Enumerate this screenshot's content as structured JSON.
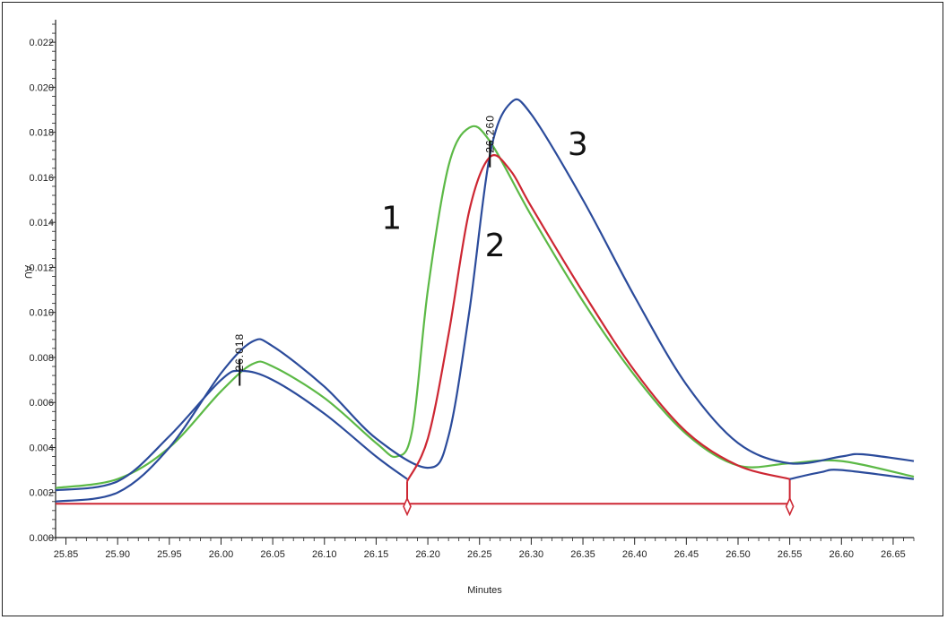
{
  "chart_data": {
    "type": "line",
    "xlabel": "Minutes",
    "ylabel": "AU",
    "xlim": [
      25.84,
      26.67
    ],
    "ylim": [
      0.0,
      0.023
    ],
    "x_ticks": [
      "25.85",
      "25.90",
      "25.95",
      "26.00",
      "26.05",
      "26.10",
      "26.15",
      "26.20",
      "26.25",
      "26.30",
      "26.35",
      "26.40",
      "26.45",
      "26.50",
      "26.55",
      "26.60",
      "26.65"
    ],
    "y_ticks": [
      "0.000",
      "0.002",
      "0.004",
      "0.006",
      "0.008",
      "0.010",
      "0.012",
      "0.014",
      "0.016",
      "0.018",
      "0.020",
      "0.022"
    ],
    "grid": false,
    "series": [
      {
        "label": "1",
        "color": "#5cb946",
        "points": [
          [
            25.84,
            0.0022
          ],
          [
            25.9,
            0.0026
          ],
          [
            25.95,
            0.004
          ],
          [
            26.0,
            0.0065
          ],
          [
            26.03,
            0.0077
          ],
          [
            26.05,
            0.0076
          ],
          [
            26.1,
            0.0062
          ],
          [
            26.15,
            0.0042
          ],
          [
            26.17,
            0.0036
          ],
          [
            26.185,
            0.0048
          ],
          [
            26.2,
            0.011
          ],
          [
            26.22,
            0.0165
          ],
          [
            26.24,
            0.0182
          ],
          [
            26.26,
            0.0176
          ],
          [
            26.3,
            0.0143
          ],
          [
            26.35,
            0.0105
          ],
          [
            26.4,
            0.0072
          ],
          [
            26.45,
            0.0046
          ],
          [
            26.5,
            0.0032
          ],
          [
            26.55,
            0.0033
          ],
          [
            26.6,
            0.0034
          ],
          [
            26.67,
            0.0027
          ]
        ]
      },
      {
        "label": "2",
        "color": "#cd2733",
        "points": [
          [
            26.18,
            0.0025
          ],
          [
            26.2,
            0.0044
          ],
          [
            26.22,
            0.009
          ],
          [
            26.24,
            0.0145
          ],
          [
            26.26,
            0.0169
          ],
          [
            26.28,
            0.0163
          ],
          [
            26.3,
            0.0147
          ],
          [
            26.35,
            0.0109
          ],
          [
            26.4,
            0.0074
          ],
          [
            26.45,
            0.0047
          ],
          [
            26.5,
            0.0032
          ],
          [
            26.55,
            0.0026
          ]
        ]
      },
      {
        "label": "3",
        "color": "#2b4b9b",
        "points": [
          [
            25.84,
            0.0016
          ],
          [
            25.9,
            0.002
          ],
          [
            25.95,
            0.004
          ],
          [
            26.0,
            0.0073
          ],
          [
            26.03,
            0.0087
          ],
          [
            26.05,
            0.0085
          ],
          [
            26.1,
            0.0067
          ],
          [
            26.15,
            0.0044
          ],
          [
            26.2,
            0.0031
          ],
          [
            26.22,
            0.0045
          ],
          [
            26.24,
            0.01
          ],
          [
            26.26,
            0.017
          ],
          [
            26.28,
            0.0193
          ],
          [
            26.3,
            0.0188
          ],
          [
            26.35,
            0.015
          ],
          [
            26.4,
            0.0107
          ],
          [
            26.45,
            0.0068
          ],
          [
            26.5,
            0.0042
          ],
          [
            26.55,
            0.0033
          ],
          [
            26.6,
            0.0036
          ],
          [
            26.62,
            0.0037
          ],
          [
            26.67,
            0.0034
          ]
        ]
      },
      {
        "label": "",
        "color": "#2b4b9b",
        "points": [
          [
            25.84,
            0.0021
          ],
          [
            25.9,
            0.0025
          ],
          [
            25.95,
            0.0045
          ],
          [
            26.0,
            0.007
          ],
          [
            26.02,
            0.0074
          ],
          [
            26.05,
            0.007
          ],
          [
            26.1,
            0.0055
          ],
          [
            26.15,
            0.0036
          ],
          [
            26.18,
            0.0026
          ]
        ]
      },
      {
        "label": "",
        "color": "#2b4b9b",
        "points": [
          [
            26.55,
            0.0026
          ],
          [
            26.58,
            0.0029
          ],
          [
            26.6,
            0.003
          ],
          [
            26.67,
            0.0026
          ]
        ]
      }
    ],
    "baseline": {
      "color": "#cd2733",
      "x_start": 25.84,
      "x_end": 26.55,
      "y": 0.0015,
      "markers_x": [
        26.18,
        26.55
      ],
      "marker_tops": [
        0.0025,
        0.0026
      ]
    },
    "peak_annotations": [
      {
        "text": "26.018",
        "x": 26.018,
        "y": 0.0073
      },
      {
        "text": "26.260",
        "x": 26.26,
        "y": 0.017
      }
    ],
    "curve_numbers": [
      {
        "text": "1",
        "x": 26.165,
        "y": 0.0137
      },
      {
        "text": "2",
        "x": 26.265,
        "y": 0.0125
      },
      {
        "text": "3",
        "x": 26.345,
        "y": 0.017
      }
    ]
  }
}
